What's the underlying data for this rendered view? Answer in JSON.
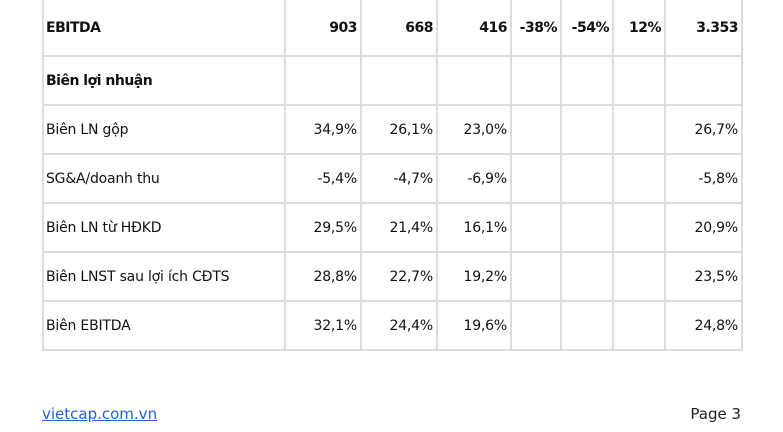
{
  "table": {
    "rows": [
      [
        "EBITDA",
        "903",
        "668",
        "416",
        "-38%",
        "-54%",
        "12%",
        "3.353"
      ],
      [
        "Biên lợi nhuận",
        null,
        null,
        null,
        null,
        null,
        null,
        null
      ],
      [
        "Biên LN gộp",
        "34,9%",
        "26,1%",
        "23,0%",
        null,
        null,
        null,
        "26,7%"
      ],
      [
        "SG&A/doanh thu",
        "-5,4%",
        "-4,7%",
        "-6,9%",
        null,
        null,
        null,
        "-5,8%"
      ],
      [
        "Biên LN từ HĐKD",
        "29,5%",
        "21,4%",
        "16,1%",
        null,
        null,
        null,
        "20,9%"
      ],
      [
        "Biên LNST sau lợi ích CĐTS",
        "28,8%",
        "22,7%",
        "19,2%",
        null,
        null,
        null,
        "23,5%"
      ],
      [
        "Biên EBITDA",
        "32,1%",
        "24,4%",
        "19,6%",
        null,
        null,
        null,
        "24,8%"
      ]
    ]
  },
  "footer": {
    "link": "vietcap.com.vn",
    "page": "Page 3"
  }
}
